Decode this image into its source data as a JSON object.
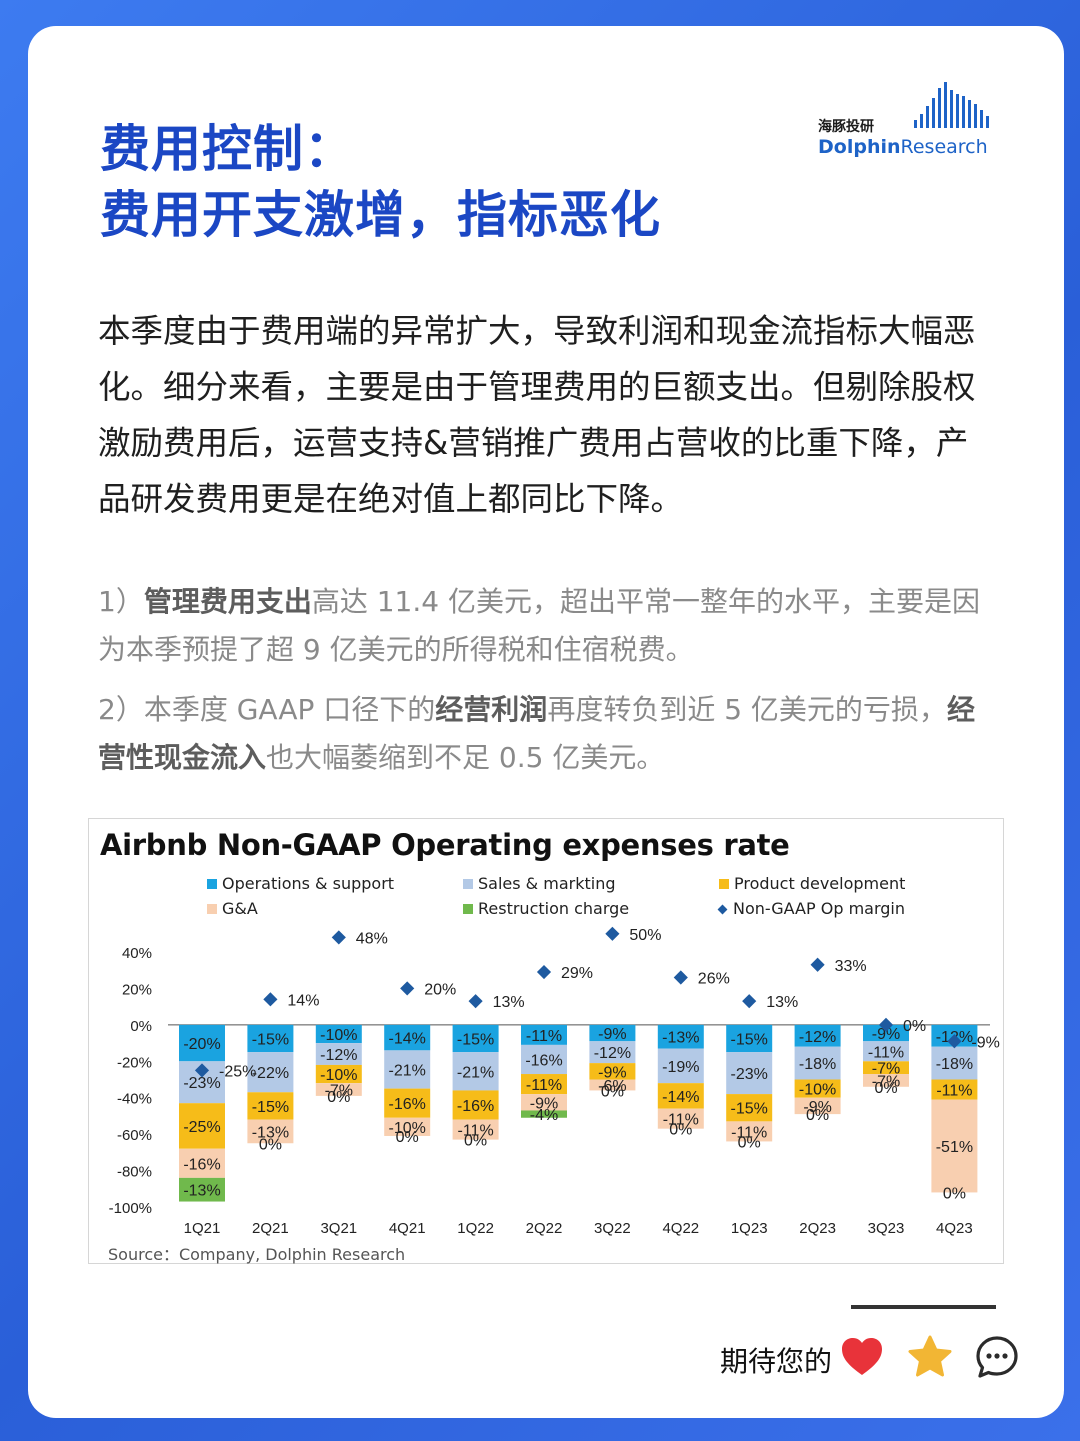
{
  "header": {
    "title_line1": "费用控制：",
    "title_line2": "费用开支激增，指标恶化",
    "logo_cn": "海豚投研",
    "logo_en_part1": "Dolphin",
    "logo_en_part2": "Research"
  },
  "body": {
    "paragraph": "本季度由于费用端的异常扩大，导致利润和现金流指标大幅恶化。细分来看，主要是由于管理费用的巨额支出。但剔除股权激励费用后，运营支持&营销推广费用占营收的比重下降，产品研发费用更是在绝对值上都同比下降。",
    "note1_prefix": "1）",
    "note1_bold": "管理费用支出",
    "note1_rest": "高达 11.4 亿美元，超出平常一整年的水平，主要是因为本季预提了超 9 亿美元的所得税和住宿税费。",
    "note2_prefix": "2）本季度 GAAP 口径下的",
    "note2_bold1": "经营利润",
    "note2_mid": "再度转负到近 5 亿美元的亏损，",
    "note2_bold2": "经营性现金流入",
    "note2_rest": "也大幅萎缩到不足 0.5 亿美元。"
  },
  "chart_data": {
    "type": "bar",
    "title": "Airbnb Non-GAAP Operating expenses rate",
    "source": "Source：Company, Dolphin Research",
    "categories": [
      "1Q21",
      "2Q21",
      "3Q21",
      "4Q21",
      "1Q22",
      "2Q22",
      "3Q22",
      "4Q22",
      "1Q23",
      "2Q23",
      "3Q23",
      "4Q23"
    ],
    "ylim": [
      -100,
      40
    ],
    "yticks": [
      "40%",
      "20%",
      "0%",
      "-20%",
      "-40%",
      "-60%",
      "-80%",
      "-100%"
    ],
    "stacked": true,
    "series": [
      {
        "name": "Operations & support",
        "color": "#1aa3e0",
        "values": [
          -20,
          -15,
          -10,
          -14,
          -15,
          -11,
          -9,
          -13,
          -15,
          -12,
          -9,
          -12
        ],
        "labels": [
          "-20%",
          "-15%",
          "-10%",
          "-14%",
          "-15%",
          "-11%",
          "-9%",
          "-13%",
          "-15%",
          "-12%",
          "-9%",
          "-12%"
        ]
      },
      {
        "name": "Sales & markting",
        "color": "#b3c9e6",
        "values": [
          -23,
          -22,
          -12,
          -21,
          -21,
          -16,
          -12,
          -19,
          -23,
          -18,
          -11,
          -18
        ],
        "labels": [
          "-23%",
          "-22%",
          "-12%",
          "-21%",
          "-21%",
          "-16%",
          "-12%",
          "-19%",
          "-23%",
          "-18%",
          "-11%",
          "-18%"
        ]
      },
      {
        "name": "Product development",
        "color": "#f6bc19",
        "values": [
          -25,
          -15,
          -10,
          -16,
          -16,
          -11,
          -9,
          -14,
          -15,
          -10,
          -7,
          -11
        ],
        "labels": [
          "-25%",
          "-15%",
          "-10%",
          "-16%",
          "-16%",
          "-11%",
          "-9%",
          "-14%",
          "-15%",
          "-10%",
          "-7%",
          "-11%"
        ]
      },
      {
        "name": "G&A",
        "color": "#f8cfb0",
        "values": [
          -16,
          -13,
          -7,
          -10,
          -11,
          -9,
          -6,
          -11,
          -11,
          -9,
          -7,
          -51
        ],
        "labels": [
          "-16%",
          "-13%",
          "-7%",
          "-10%",
          "-11%",
          "-9%",
          "-6%",
          "-11%",
          "-11%",
          "-9%",
          "-7%",
          "-51%"
        ]
      },
      {
        "name": "Restruction charge",
        "color": "#70b94c",
        "values": [
          -13,
          0,
          0,
          0,
          0,
          -4,
          0,
          0,
          0,
          0,
          0,
          0
        ],
        "labels": [
          "-13%",
          "0%",
          "0%",
          "0%",
          "0%",
          "-4%",
          "0%",
          "0%",
          "0%",
          "0%",
          "0%",
          "0%"
        ]
      },
      {
        "name": "Non-GAAP Op margin",
        "color": "#1e5aa0",
        "kind": "marker",
        "values": [
          -25,
          14,
          48,
          20,
          13,
          29,
          50,
          26,
          13,
          33,
          0,
          -9
        ],
        "labels": [
          "-25%",
          "14%",
          "48%",
          "20%",
          "13%",
          "29%",
          "50%",
          "26%",
          "13%",
          "33%",
          "0%",
          "-9%"
        ]
      }
    ]
  },
  "footer": {
    "cta": "期待您的",
    "icons": [
      "heart-icon",
      "star-icon",
      "comment-icon"
    ]
  }
}
